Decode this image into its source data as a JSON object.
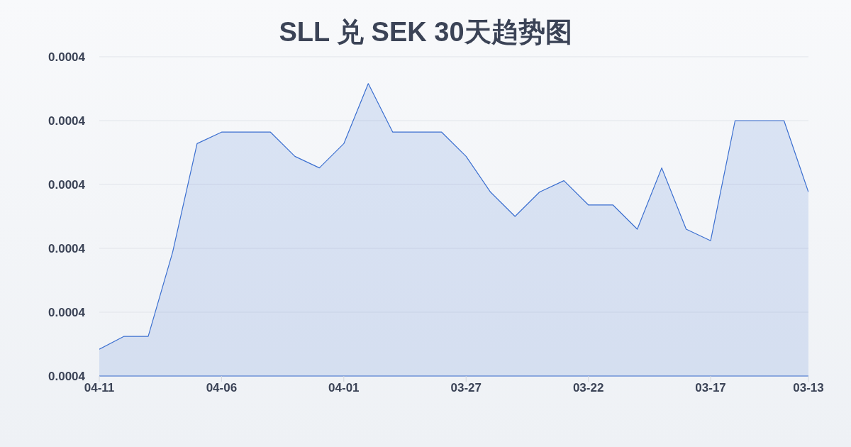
{
  "chart_data": {
    "type": "area",
    "title": "SLL 兑 SEK 30天趋势图",
    "categories": [
      "04-11",
      null,
      null,
      null,
      null,
      "04-06",
      null,
      null,
      null,
      null,
      "04-01",
      null,
      null,
      null,
      null,
      "03-27",
      null,
      null,
      null,
      null,
      "03-22",
      null,
      null,
      null,
      null,
      "03-17",
      null,
      null,
      null,
      "03-13"
    ],
    "values": [
      0.0004121,
      0.0004131,
      0.0004131,
      0.0004197,
      0.0004282,
      0.0004291,
      0.0004291,
      0.0004291,
      0.0004272,
      0.0004263,
      0.0004282,
      0.0004329,
      0.0004291,
      0.0004291,
      0.0004291,
      0.0004272,
      0.0004244,
      0.0004225,
      0.0004244,
      0.0004253,
      0.0004234,
      0.0004234,
      0.0004215,
      0.0004263,
      0.0004215,
      0.0004206,
      0.00043,
      0.00043,
      0.00043,
      0.0004244
    ],
    "color": "#3b6fd0",
    "ylim": [
      0.00041,
      0.000435
    ],
    "yticks": [
      {
        "value": 0.000435,
        "label": "0.0004"
      },
      {
        "value": 0.00043,
        "label": "0.0004"
      },
      {
        "value": 0.000425,
        "label": "0.0004"
      },
      {
        "value": 0.00042,
        "label": "0.0004"
      },
      {
        "value": 0.000415,
        "label": "0.0004"
      },
      {
        "value": 0.00041,
        "label": "0.0004"
      }
    ],
    "grid": "y"
  }
}
